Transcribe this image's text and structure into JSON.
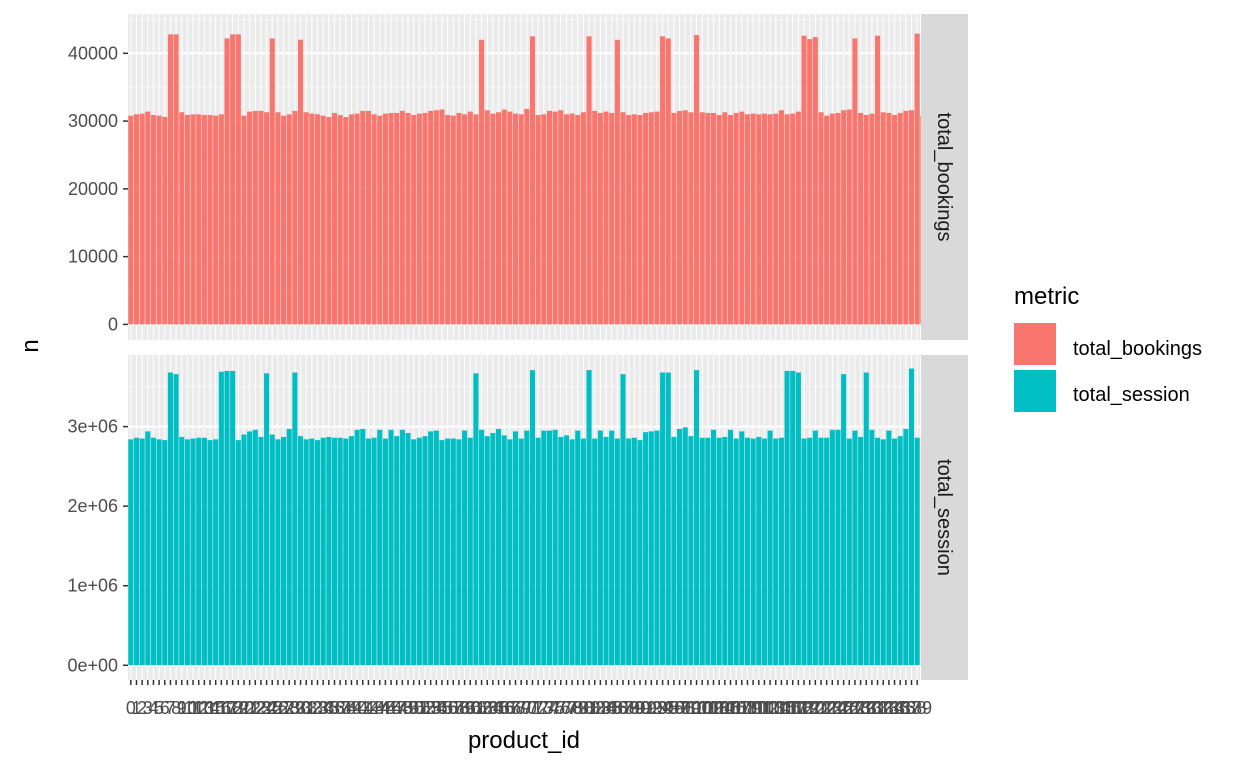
{
  "chart_data": {
    "type": "bar",
    "xlabel": "product_id",
    "ylabel": "n",
    "legend": {
      "title": "metric",
      "position": "right",
      "entries": [
        {
          "label": "total_bookings",
          "color": "#F8766D"
        },
        {
          "label": "total_session",
          "color": "#00BFC4"
        }
      ]
    },
    "grid": true,
    "x_tick_labels": [
      "0",
      "1",
      "2",
      "3",
      "4",
      "5",
      "6",
      "7",
      "8",
      "9",
      "10",
      "11",
      "12",
      "13",
      "14",
      "15",
      "16",
      "17",
      "18",
      "19",
      "20",
      "21",
      "22",
      "23",
      "24",
      "25",
      "26",
      "27",
      "28",
      "29",
      "30",
      "31",
      "32",
      "33",
      "34",
      "35",
      "36",
      "37",
      "38",
      "39",
      "40",
      "41",
      "42",
      "43",
      "44",
      "45",
      "46",
      "47",
      "48",
      "49",
      "50",
      "51",
      "52",
      "53",
      "54",
      "55",
      "56",
      "57",
      "58",
      "59",
      "60",
      "61",
      "62",
      "63",
      "64",
      "65",
      "66",
      "67",
      "68",
      "69",
      "70",
      "71",
      "72",
      "73",
      "74",
      "75",
      "76",
      "77",
      "78",
      "79",
      "80",
      "81",
      "82",
      "83",
      "84",
      "85",
      "86",
      "87",
      "88",
      "89",
      "90",
      "91",
      "92",
      "93",
      "94",
      "95",
      "96",
      "97",
      "98",
      "99",
      "100",
      "101",
      "102",
      "103",
      "104",
      "105",
      "106",
      "107",
      "108",
      "109",
      "110",
      "111",
      "112",
      "113",
      "114",
      "115",
      "116",
      "117",
      "118",
      "119",
      "120",
      "121",
      "122",
      "123",
      "124",
      "125",
      "126",
      "127",
      "128",
      "129",
      "130",
      "131",
      "132",
      "133",
      "134",
      "135",
      "136",
      "137",
      "138",
      "139"
    ],
    "facets": [
      {
        "strip": "total_bookings",
        "color": "#F8766D",
        "ylim": [
          -2300,
          45800
        ],
        "y_ticks": [
          0,
          10000,
          20000,
          30000,
          40000
        ],
        "y_tick_labels": [
          "0",
          "10000",
          "20000",
          "30000",
          "40000"
        ],
        "values": [
          30800,
          31000,
          31100,
          31400,
          30900,
          30800,
          30600,
          42800,
          42800,
          31300,
          30900,
          31000,
          31000,
          30900,
          30900,
          30800,
          31000,
          42200,
          42800,
          42800,
          30800,
          31400,
          31500,
          31500,
          31300,
          42200,
          31300,
          30800,
          31000,
          31500,
          42000,
          31300,
          31100,
          31000,
          30800,
          30600,
          31200,
          30900,
          30600,
          31000,
          31100,
          31500,
          31500,
          31000,
          30800,
          31100,
          31200,
          31200,
          31500,
          31200,
          30900,
          31100,
          31200,
          31500,
          31600,
          31700,
          30900,
          30800,
          31200,
          31000,
          31400,
          31000,
          42000,
          31600,
          31100,
          31300,
          31700,
          31400,
          31100,
          31000,
          31800,
          42500,
          30900,
          31000,
          31500,
          31400,
          31600,
          31000,
          31100,
          30900,
          31300,
          42500,
          31500,
          31200,
          31400,
          31200,
          42000,
          31300,
          30900,
          31000,
          30900,
          31200,
          31300,
          31400,
          42500,
          42200,
          31200,
          31500,
          31600,
          31300,
          42700,
          31300,
          31200,
          31200,
          30900,
          31300,
          30900,
          31200,
          31400,
          31000,
          31100,
          31000,
          31100,
          31000,
          31100,
          31600,
          31000,
          31100,
          31400,
          42600,
          42100,
          42400,
          31300,
          30800,
          31100,
          31200,
          31600,
          31700,
          42200,
          31200,
          30900,
          31100,
          42600,
          31300,
          31200,
          30900,
          31200,
          31500,
          31600,
          42900,
          30800
        ]
      },
      {
        "strip": "total_session",
        "color": "#00BFC4",
        "ylim": [
          -185000,
          3900000
        ],
        "y_ticks": [
          0,
          1000000,
          2000000,
          3000000
        ],
        "y_tick_labels": [
          "0e+00",
          "1e+06",
          "2e+06",
          "3e+06"
        ],
        "values": [
          2840000,
          2860000,
          2850000,
          2940000,
          2860000,
          2840000,
          2830000,
          3680000,
          3660000,
          2870000,
          2840000,
          2850000,
          2860000,
          2860000,
          2830000,
          2840000,
          3690000,
          3700000,
          3700000,
          2830000,
          2900000,
          2940000,
          2960000,
          2870000,
          3670000,
          2900000,
          2840000,
          2870000,
          2970000,
          3680000,
          2880000,
          2840000,
          2850000,
          2830000,
          2860000,
          2870000,
          2860000,
          2860000,
          2850000,
          2880000,
          2960000,
          2970000,
          2850000,
          2860000,
          2960000,
          2850000,
          2960000,
          2880000,
          2960000,
          2920000,
          2840000,
          2860000,
          2880000,
          2940000,
          2950000,
          2830000,
          2850000,
          2850000,
          2840000,
          2950000,
          2860000,
          3670000,
          2960000,
          2880000,
          2920000,
          2970000,
          2890000,
          2840000,
          2940000,
          2850000,
          2950000,
          3710000,
          2860000,
          2950000,
          2950000,
          2960000,
          2870000,
          2890000,
          2840000,
          2950000,
          2850000,
          3710000,
          2850000,
          2950000,
          2870000,
          2950000,
          2850000,
          3660000,
          2850000,
          2860000,
          2830000,
          2930000,
          2940000,
          2950000,
          3680000,
          3680000,
          2870000,
          2970000,
          2990000,
          2880000,
          3710000,
          2860000,
          2860000,
          2960000,
          2860000,
          2870000,
          2960000,
          2850000,
          2940000,
          2860000,
          2850000,
          2870000,
          2850000,
          2950000,
          2850000,
          2860000,
          3700000,
          3700000,
          3680000,
          2850000,
          2860000,
          2950000,
          2860000,
          2860000,
          2960000,
          2960000,
          3660000,
          2850000,
          2950000,
          2870000,
          3680000,
          2960000,
          2860000,
          2840000,
          2950000,
          2850000,
          2880000,
          2970000,
          3730000,
          2860000
        ]
      }
    ]
  }
}
